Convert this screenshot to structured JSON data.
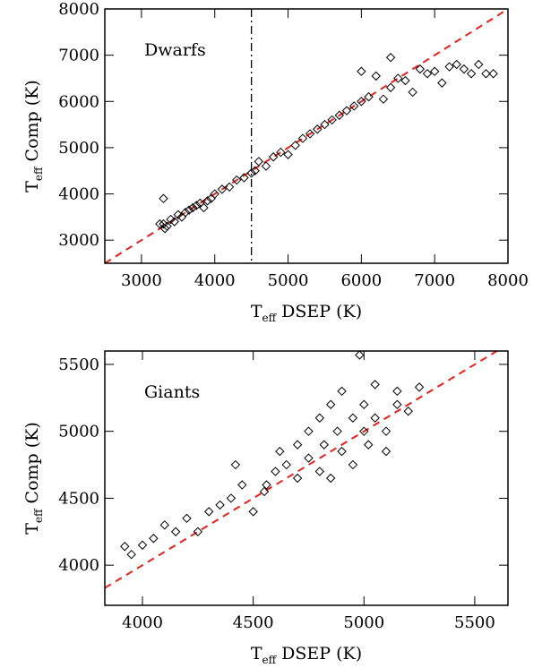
{
  "chart_data": [
    {
      "type": "scatter",
      "annotation": "Dwarfs",
      "xlabel": {
        "symbol": "T",
        "subscript": "eff",
        "text": "DSEP (K)"
      },
      "ylabel": {
        "symbol": "T",
        "subscript": "eff",
        "text": "Comp (K)"
      },
      "xlim": [
        2500,
        8000
      ],
      "ylim": [
        2500,
        8000
      ],
      "xticks": [
        3000,
        4000,
        5000,
        6000,
        7000,
        8000
      ],
      "yticks": [
        3000,
        4000,
        5000,
        6000,
        7000,
        8000
      ],
      "vline": 4500,
      "diagonal_color": "#e8211c",
      "x": [
        3250,
        3300,
        3320,
        3350,
        3400,
        3450,
        3500,
        3550,
        3600,
        3650,
        3700,
        3750,
        3800,
        3850,
        3900,
        3950,
        4000,
        4100,
        4200,
        4300,
        4400,
        4500,
        4550,
        4600,
        4700,
        4800,
        4900,
        5000,
        5100,
        5200,
        5300,
        5400,
        5500,
        5600,
        5700,
        5800,
        5900,
        6000,
        6100,
        6200,
        6300,
        6400,
        6500,
        6600,
        6700,
        6800,
        6900,
        7000,
        7100,
        7200,
        7300,
        7400,
        7500,
        7600,
        7700,
        7800,
        3300,
        6000,
        6400
      ],
      "series": [
        {
          "color": "#000000",
          "values": [
            3350,
            3900,
            3250,
            3300,
            3450,
            3400,
            3550,
            3500,
            3600,
            3650,
            3700,
            3750,
            3800,
            3700,
            3850,
            3900,
            4000,
            4100,
            4150,
            4300,
            4350,
            4450,
            4500,
            4700,
            4600,
            4800,
            4900,
            4850,
            5050,
            5200,
            5300,
            5400,
            5500,
            5600,
            5700,
            5800,
            5900,
            6000,
            6100,
            6550,
            6050,
            6300,
            6500,
            6450,
            6200,
            6700,
            6600,
            6650,
            6400,
            6750,
            6800,
            6700,
            6600,
            6800,
            6600,
            6600,
            3350,
            6650,
            6950
          ]
        }
      ]
    },
    {
      "type": "scatter",
      "annotation": "Giants",
      "xlabel": {
        "symbol": "T",
        "subscript": "eff",
        "text": "DSEP (K)"
      },
      "ylabel": {
        "symbol": "T",
        "subscript": "eff",
        "text": "Comp (K)"
      },
      "xlim": [
        3830,
        5650
      ],
      "ylim": [
        3700,
        5600
      ],
      "xticks": [
        4000,
        4500,
        5000,
        5500
      ],
      "yticks": [
        4000,
        4500,
        5000,
        5500
      ],
      "diagonal_color": "#e8211c",
      "x": [
        3920,
        3950,
        4000,
        4050,
        4100,
        4150,
        4200,
        4250,
        4300,
        4350,
        4400,
        4420,
        4450,
        4500,
        4550,
        4600,
        4620,
        4650,
        4700,
        4700,
        4750,
        4750,
        4800,
        4800,
        4820,
        4850,
        4850,
        4880,
        4900,
        4900,
        4950,
        4950,
        5000,
        5000,
        5020,
        5050,
        5050,
        5100,
        5100,
        5150,
        5200,
        5250,
        4980,
        5150,
        4560
      ],
      "series": [
        {
          "color": "#000000",
          "values": [
            4140,
            4080,
            4150,
            4200,
            4300,
            4250,
            4350,
            4250,
            4400,
            4450,
            4500,
            4750,
            4600,
            4400,
            4550,
            4700,
            4850,
            4750,
            4900,
            4650,
            4800,
            5000,
            4700,
            5100,
            4900,
            5200,
            4650,
            5000,
            4850,
            5300,
            5100,
            4750,
            5000,
            5200,
            4900,
            5100,
            5350,
            5000,
            4850,
            5200,
            5150,
            5330,
            5570,
            5300,
            4600
          ]
        }
      ]
    }
  ]
}
